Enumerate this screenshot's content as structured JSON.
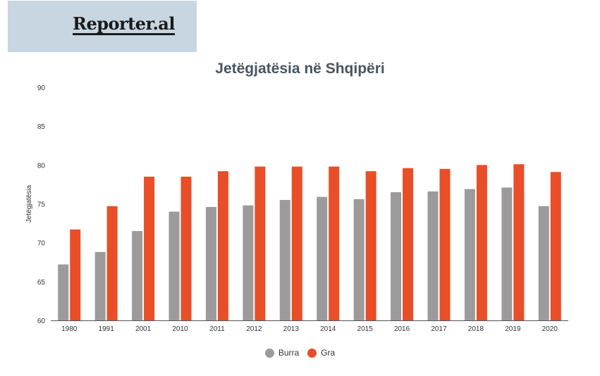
{
  "logo": {
    "text": "Reporter.al"
  },
  "chart_data": {
    "type": "bar",
    "title": "Jetëgjatësia në Shqipëri",
    "xlabel": "",
    "ylabel": "Jetëgjatësia",
    "ylim": [
      60,
      90
    ],
    "yticks": [
      60,
      65,
      70,
      75,
      80,
      85,
      90
    ],
    "grid": false,
    "legend_position": "bottom",
    "categories": [
      "1980",
      "1991",
      "2001",
      "2010",
      "2011",
      "2012",
      "2013",
      "2014",
      "2015",
      "2016",
      "2017",
      "2018",
      "2019",
      "2020"
    ],
    "series": [
      {
        "name": "Burra",
        "color": "#9c9a9a",
        "values": [
          67.2,
          68.8,
          71.5,
          74.0,
          74.6,
          74.8,
          75.5,
          75.9,
          75.6,
          76.5,
          76.6,
          76.9,
          77.1,
          74.7
        ]
      },
      {
        "name": "Gra",
        "color": "#e84e27",
        "values": [
          71.7,
          74.7,
          78.5,
          78.5,
          79.2,
          79.8,
          79.8,
          79.8,
          79.2,
          79.6,
          79.5,
          80.0,
          80.1,
          79.1
        ]
      }
    ]
  }
}
